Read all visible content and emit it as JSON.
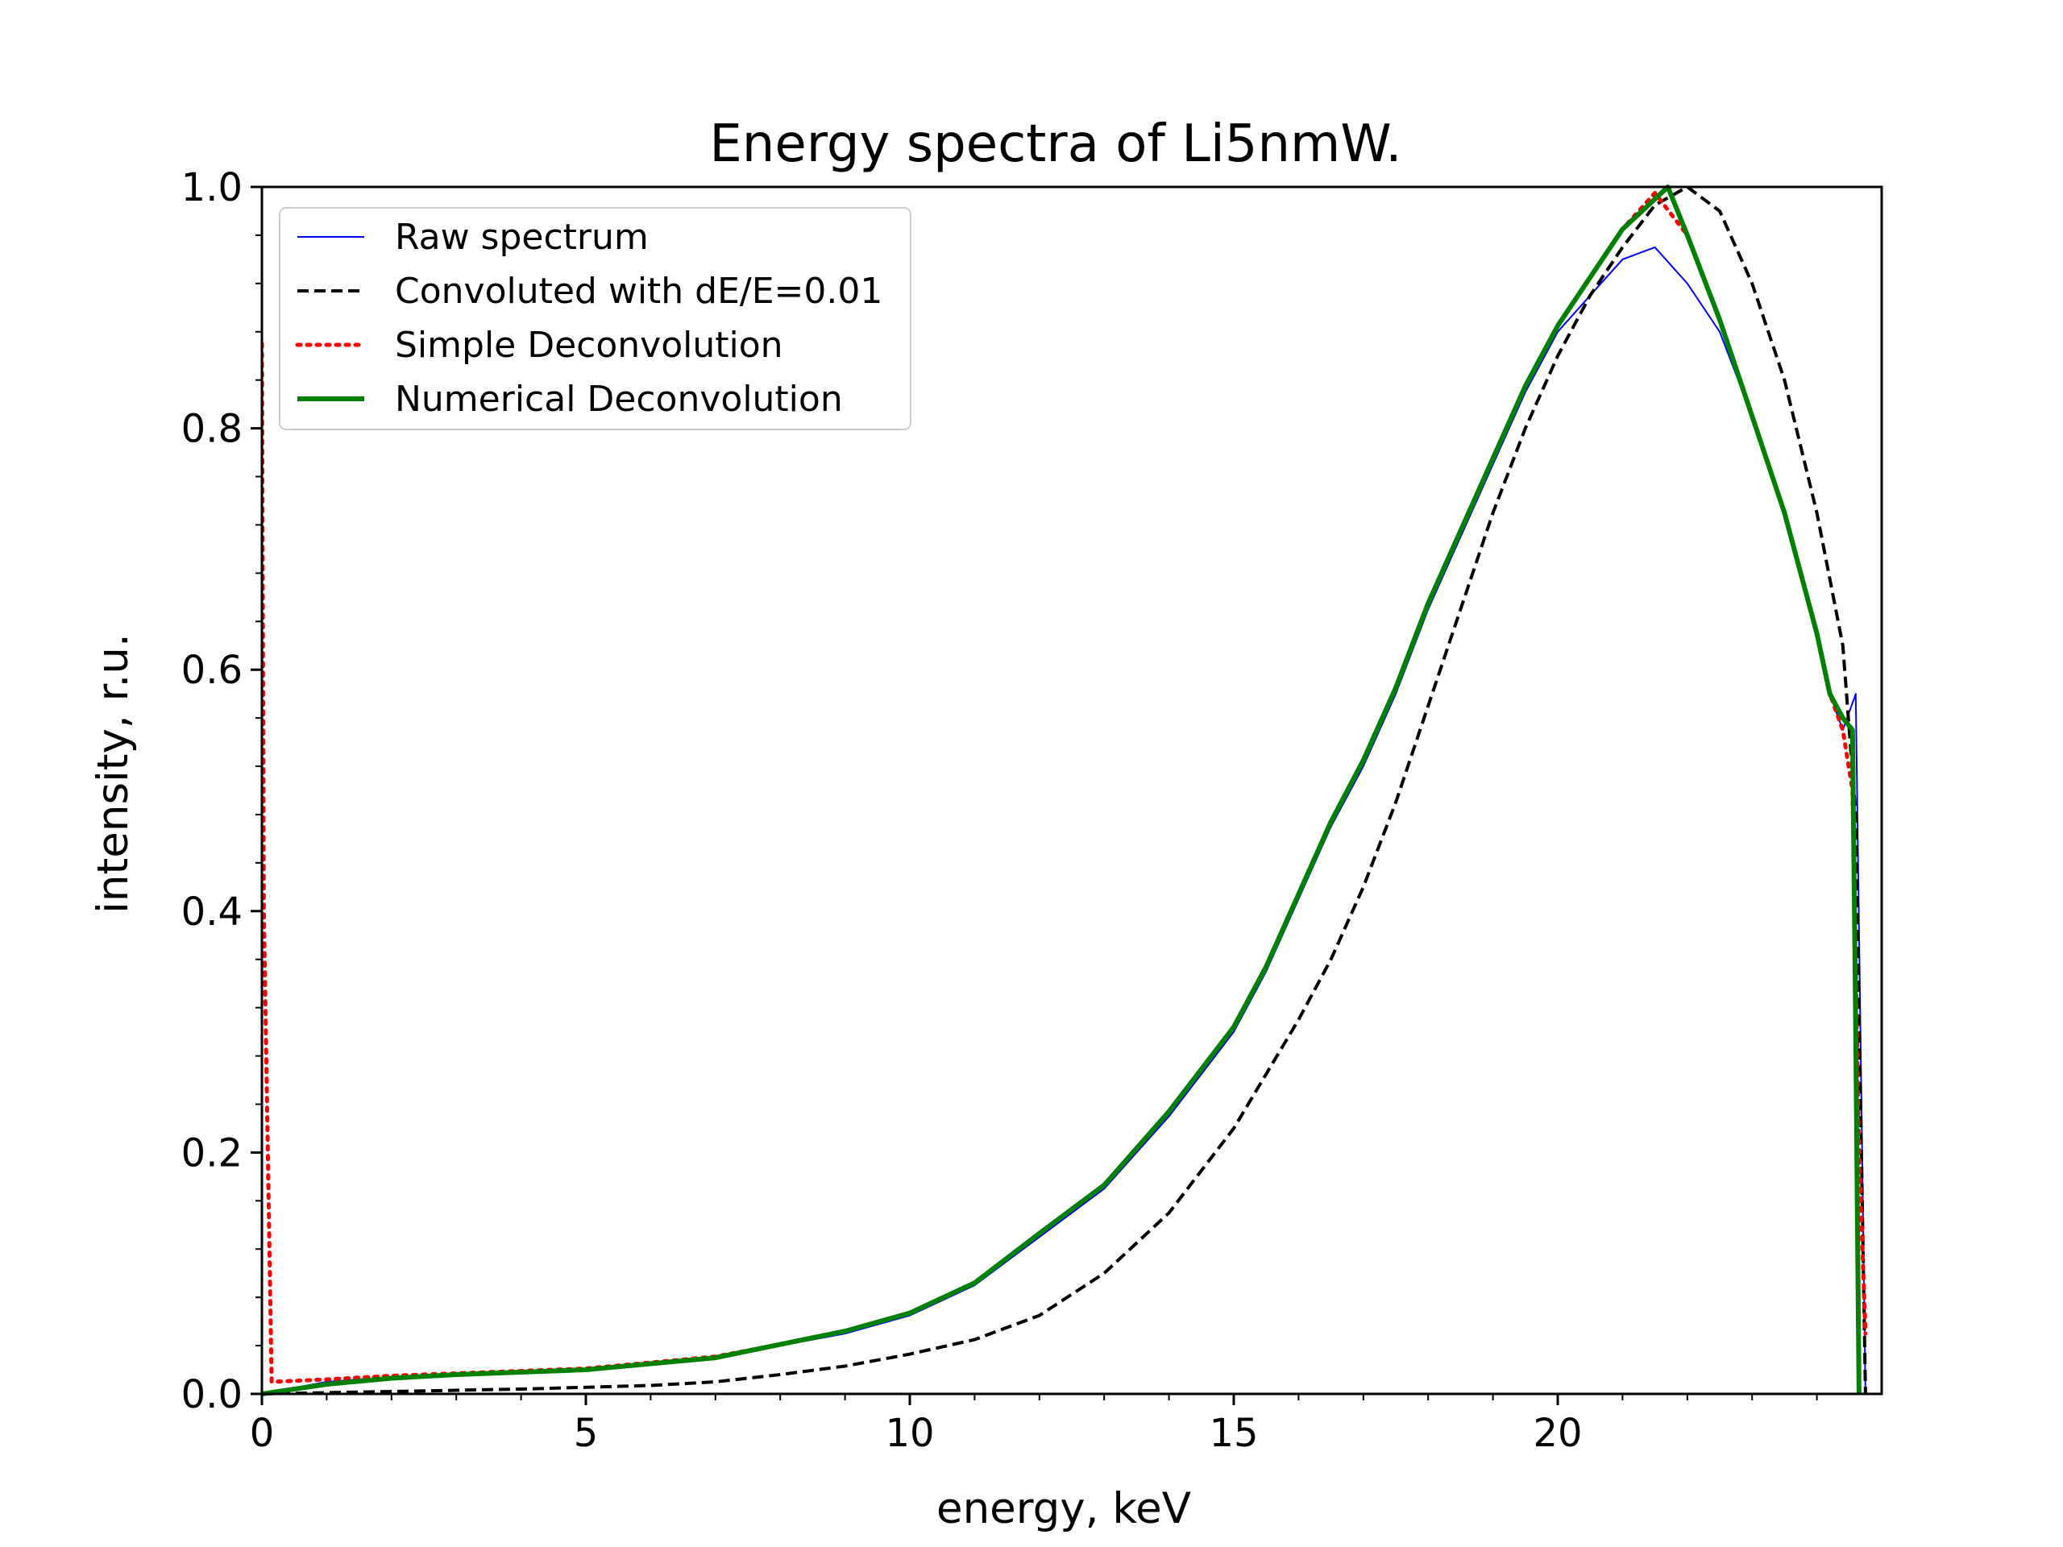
{
  "chart_data": {
    "type": "line",
    "title": "Energy spectra of Li5nmW.",
    "xlabel": "energy, keV",
    "ylabel": "intensity, r.u.",
    "xlim": [
      0,
      25
    ],
    "ylim": [
      0,
      1.0
    ],
    "xticks": [
      0,
      5,
      10,
      15,
      20
    ],
    "xtick_labels": [
      "0",
      "5",
      "10",
      "15",
      "20"
    ],
    "yticks": [
      0.0,
      0.2,
      0.4,
      0.6,
      0.8,
      1.0
    ],
    "ytick_labels": [
      "0.0",
      "0.2",
      "0.4",
      "0.6",
      "0.8",
      "1.0"
    ],
    "legend_position": "top-left",
    "grid": false,
    "series": [
      {
        "name": "Raw spectrum",
        "color": "#0000ff",
        "style": "solid-thin",
        "x": [
          0,
          1,
          2,
          3,
          4,
          5,
          6,
          7,
          8,
          9,
          10,
          11,
          12,
          13,
          14,
          15,
          15.5,
          16,
          16.5,
          17,
          17.5,
          18,
          18.5,
          19,
          19.5,
          20,
          20.5,
          21,
          21.5,
          22,
          22.5,
          23,
          23.5,
          24,
          24.2,
          24.4,
          24.6,
          24.75
        ],
        "y": [
          0.0,
          0.01,
          0.014,
          0.016,
          0.018,
          0.02,
          0.025,
          0.03,
          0.04,
          0.05,
          0.065,
          0.09,
          0.13,
          0.17,
          0.23,
          0.3,
          0.35,
          0.41,
          0.47,
          0.52,
          0.58,
          0.65,
          0.71,
          0.77,
          0.83,
          0.88,
          0.91,
          0.94,
          0.95,
          0.92,
          0.88,
          0.81,
          0.73,
          0.63,
          0.58,
          0.55,
          0.58,
          0.0
        ]
      },
      {
        "name": "Convoluted with dE/E=0.01",
        "color": "#000000",
        "style": "dashed",
        "x": [
          0,
          2,
          4,
          6,
          7,
          8,
          9,
          10,
          11,
          12,
          13,
          14,
          15,
          16,
          16.5,
          17,
          17.5,
          18,
          18.5,
          19,
          19.5,
          20,
          20.5,
          21,
          21.5,
          22,
          22.5,
          23,
          23.5,
          24,
          24.4,
          24.6,
          24.75
        ],
        "y": [
          0.0,
          0.002,
          0.004,
          0.007,
          0.01,
          0.016,
          0.023,
          0.033,
          0.045,
          0.065,
          0.1,
          0.15,
          0.22,
          0.31,
          0.36,
          0.42,
          0.49,
          0.57,
          0.65,
          0.73,
          0.8,
          0.86,
          0.91,
          0.95,
          0.985,
          1.0,
          0.98,
          0.92,
          0.84,
          0.73,
          0.62,
          0.48,
          0.0
        ]
      },
      {
        "name": "Simple Deconvolution",
        "color": "#ff0000",
        "style": "dotted",
        "x": [
          0,
          0.03,
          0.15,
          1,
          2,
          3,
          4,
          5,
          6,
          7,
          8,
          9,
          10,
          11,
          12,
          13,
          14,
          15,
          15.5,
          16,
          16.5,
          17,
          17.5,
          18,
          18.5,
          19,
          19.5,
          20,
          20.5,
          21,
          21.5,
          22,
          22.5,
          23,
          23.5,
          24,
          24.2,
          24.4,
          24.55,
          24.65,
          24.75
        ],
        "y": [
          0.87,
          0.4,
          0.01,
          0.012,
          0.015,
          0.017,
          0.019,
          0.021,
          0.026,
          0.031,
          0.041,
          0.052,
          0.067,
          0.092,
          0.133,
          0.173,
          0.234,
          0.304,
          0.354,
          0.414,
          0.474,
          0.525,
          0.585,
          0.655,
          0.715,
          0.775,
          0.835,
          0.885,
          0.925,
          0.965,
          0.995,
          0.96,
          0.89,
          0.81,
          0.73,
          0.63,
          0.58,
          0.55,
          0.5,
          0.2,
          0.05
        ]
      },
      {
        "name": "Numerical Deconvolution",
        "color": "#008000",
        "style": "solid-thick",
        "x": [
          0,
          1,
          2,
          3,
          4,
          5,
          6,
          7,
          8,
          9,
          10,
          11,
          12,
          13,
          14,
          15,
          15.5,
          16,
          16.5,
          17,
          17.5,
          18,
          18.5,
          19,
          19.5,
          20,
          20.5,
          21,
          21.5,
          21.7,
          22,
          22.5,
          23,
          23.5,
          24,
          24.2,
          24.4,
          24.55,
          24.6,
          24.65
        ],
        "y": [
          0.0,
          0.008,
          0.013,
          0.016,
          0.018,
          0.02,
          0.025,
          0.03,
          0.041,
          0.052,
          0.067,
          0.092,
          0.133,
          0.173,
          0.234,
          0.304,
          0.354,
          0.414,
          0.474,
          0.525,
          0.585,
          0.655,
          0.715,
          0.775,
          0.835,
          0.885,
          0.925,
          0.965,
          0.99,
          1.0,
          0.96,
          0.89,
          0.81,
          0.73,
          0.63,
          0.58,
          0.56,
          0.55,
          0.3,
          0.0
        ]
      }
    ]
  }
}
